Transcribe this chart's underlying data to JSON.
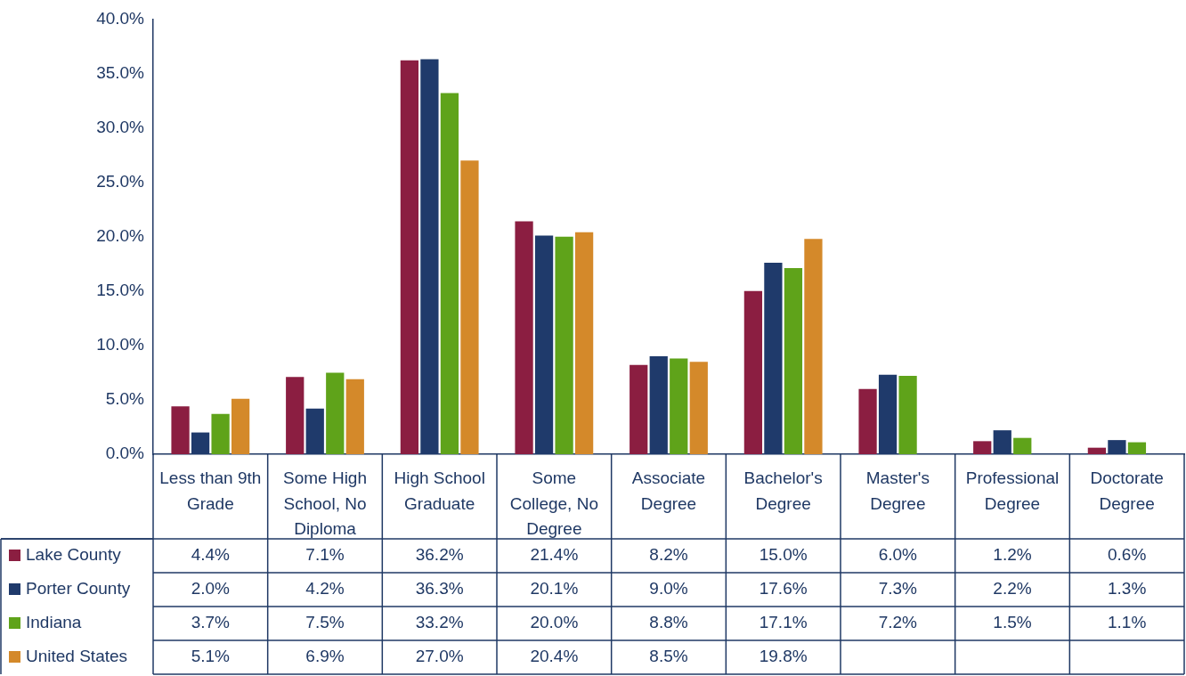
{
  "chart_data": {
    "type": "bar",
    "categories": [
      "Less than 9th Grade",
      "Some High School, No Diploma",
      "High School Graduate",
      "Some College, No Degree",
      "Associate Degree",
      "Bachelor's Degree",
      "Master's Degree",
      "Professional Degree",
      "Doctorate Degree"
    ],
    "series": [
      {
        "name": "Lake County",
        "color": "#8b1e41",
        "values": [
          4.4,
          7.1,
          36.2,
          21.4,
          8.2,
          15.0,
          6.0,
          1.2,
          0.6
        ],
        "value_labels": [
          "4.4%",
          "7.1%",
          "36.2%",
          "21.4%",
          "8.2%",
          "15.0%",
          "6.0%",
          "1.2%",
          "0.6%"
        ]
      },
      {
        "name": "Porter County",
        "color": "#1f3a6b",
        "values": [
          2.0,
          4.2,
          36.3,
          20.1,
          9.0,
          17.6,
          7.3,
          2.2,
          1.3
        ],
        "value_labels": [
          "2.0%",
          "4.2%",
          "36.3%",
          "20.1%",
          "9.0%",
          "17.6%",
          "7.3%",
          "2.2%",
          "1.3%"
        ]
      },
      {
        "name": "Indiana",
        "color": "#5fa31a",
        "values": [
          3.7,
          7.5,
          33.2,
          20.0,
          8.8,
          17.1,
          7.2,
          1.5,
          1.1
        ],
        "value_labels": [
          "3.7%",
          "7.5%",
          "33.2%",
          "20.0%",
          "8.8%",
          "17.1%",
          "7.2%",
          "1.5%",
          "1.1%"
        ]
      },
      {
        "name": "United States",
        "color": "#d4892a",
        "values": [
          5.1,
          6.9,
          27.0,
          20.4,
          8.5,
          19.8,
          null,
          null,
          null
        ],
        "value_labels": [
          "5.1%",
          "6.9%",
          "27.0%",
          "20.4%",
          "8.5%",
          "19.8%",
          null,
          null,
          null
        ]
      }
    ],
    "ylim": [
      0,
      40
    ],
    "yticks": [
      {
        "value": 0,
        "label": "0.0%"
      },
      {
        "value": 5,
        "label": "5.0%"
      },
      {
        "value": 10,
        "label": "10.0%"
      },
      {
        "value": 15,
        "label": "15.0%"
      },
      {
        "value": 20,
        "label": "20.0%"
      },
      {
        "value": 25,
        "label": "25.0%"
      },
      {
        "value": 30,
        "label": "30.0%"
      },
      {
        "value": 35,
        "label": "35.0%"
      },
      {
        "value": 40,
        "label": "40.0%"
      }
    ],
    "grid": false,
    "legend": "bottom left"
  }
}
